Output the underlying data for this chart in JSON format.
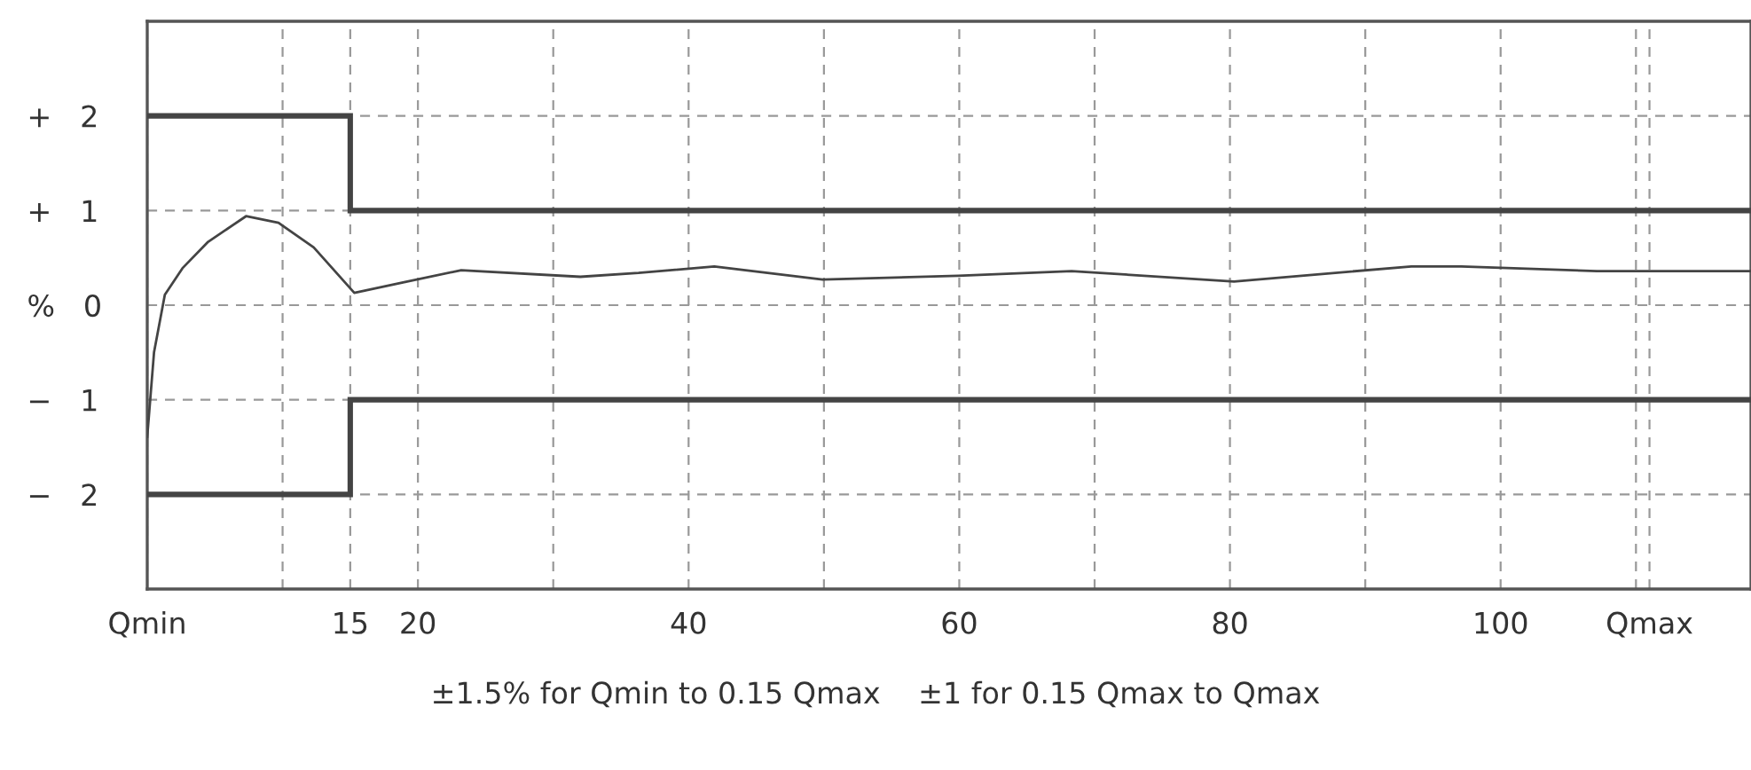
{
  "chart_data": {
    "type": "line",
    "series": [
      {
        "color": "#444444",
        "x": [
          0,
          15,
          15,
          118.5
        ],
        "values": [
          2,
          2,
          1,
          1
        ]
      },
      {
        "color": "#444444",
        "x": [
          0,
          15,
          15,
          118.5
        ],
        "values": [
          -2,
          -2,
          -1,
          -1
        ]
      },
      {
        "color": "#444444",
        "x": [
          0,
          0.5,
          1.3,
          2.6,
          4.5,
          7.3,
          9.7,
          12.3,
          15.3,
          18.9,
          23.2,
          32.0,
          36.3,
          41.9,
          49.9,
          59.9,
          68.3,
          80.3,
          93.4,
          97.1,
          107.1,
          118.5
        ],
        "values": [
          -1.39,
          -0.5,
          0.11,
          0.39,
          0.67,
          0.94,
          0.87,
          0.61,
          0.13,
          0.24,
          0.37,
          0.3,
          0.34,
          0.41,
          0.27,
          0.31,
          0.36,
          0.25,
          0.41,
          0.41,
          0.36,
          0.36
        ]
      }
    ],
    "xlim": [
      0,
      118.5
    ],
    "ylim": [
      -3,
      3
    ],
    "xticks": [
      {
        "value": 0,
        "label": "Qmin"
      },
      {
        "value": 10,
        "label": null
      },
      15,
      20,
      {
        "value": 30,
        "label": null
      },
      40,
      {
        "value": 50,
        "label": null
      },
      60,
      {
        "value": 70,
        "label": null
      },
      80,
      {
        "value": 90,
        "label": null
      },
      100,
      {
        "value": 110,
        "label": null
      },
      {
        "value": 111,
        "label": "Qmax"
      }
    ],
    "yticks": [
      {
        "value": 2,
        "label": "+   2"
      },
      {
        "value": 1,
        "label": "+   1"
      },
      {
        "value": 0,
        "label": "%   0"
      },
      {
        "value": -1,
        "label": "−   1"
      },
      {
        "value": -2,
        "label": "−   2"
      }
    ],
    "grid": true,
    "annotations": [
      "±1.5% for Qmin to 0.15 Qmax    ±1 for 0.15 Qmax to Qmax"
    ]
  }
}
